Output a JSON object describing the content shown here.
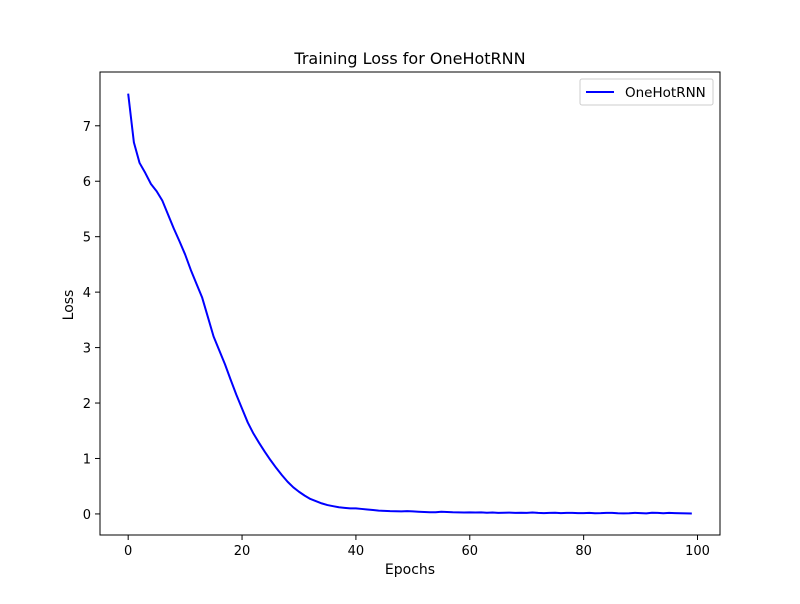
{
  "chart_data": {
    "type": "line",
    "title": "Training Loss for OneHotRNN",
    "xlabel": "Epochs",
    "ylabel": "Loss",
    "xlim": [
      -4.95,
      103.95
    ],
    "ylim": [
      -0.38,
      7.97
    ],
    "xticks": [
      0,
      20,
      40,
      60,
      80,
      100
    ],
    "yticks": [
      0,
      1,
      2,
      3,
      4,
      5,
      6,
      7
    ],
    "grid": false,
    "legend_position": "top-right",
    "series": [
      {
        "name": "OneHotRNN",
        "color": "#0000ff",
        "x": [
          0,
          1,
          2,
          3,
          4,
          5,
          6,
          7,
          8,
          9,
          10,
          11,
          12,
          13,
          14,
          15,
          16,
          17,
          18,
          19,
          20,
          21,
          22,
          23,
          24,
          25,
          26,
          27,
          28,
          29,
          30,
          31,
          32,
          33,
          34,
          35,
          36,
          37,
          38,
          39,
          40,
          41,
          42,
          43,
          44,
          45,
          46,
          47,
          48,
          49,
          50,
          51,
          52,
          53,
          54,
          55,
          56,
          57,
          58,
          59,
          60,
          61,
          62,
          63,
          64,
          65,
          66,
          67,
          68,
          69,
          70,
          71,
          72,
          73,
          74,
          75,
          76,
          77,
          78,
          79,
          80,
          81,
          82,
          83,
          84,
          85,
          86,
          87,
          88,
          89,
          90,
          91,
          92,
          93,
          94,
          95,
          96,
          97,
          98,
          99
        ],
        "y": [
          7.58,
          6.7,
          6.33,
          6.15,
          5.95,
          5.82,
          5.65,
          5.4,
          5.15,
          4.92,
          4.68,
          4.4,
          4.15,
          3.9,
          3.55,
          3.2,
          2.95,
          2.7,
          2.42,
          2.15,
          1.9,
          1.65,
          1.45,
          1.28,
          1.12,
          0.97,
          0.83,
          0.7,
          0.58,
          0.48,
          0.4,
          0.33,
          0.27,
          0.23,
          0.19,
          0.16,
          0.14,
          0.12,
          0.11,
          0.1,
          0.1,
          0.09,
          0.08,
          0.07,
          0.06,
          0.055,
          0.05,
          0.048,
          0.045,
          0.05,
          0.045,
          0.04,
          0.035,
          0.03,
          0.03,
          0.04,
          0.035,
          0.03,
          0.028,
          0.025,
          0.027,
          0.025,
          0.028,
          0.022,
          0.025,
          0.02,
          0.022,
          0.024,
          0.02,
          0.022,
          0.02,
          0.025,
          0.018,
          0.015,
          0.02,
          0.022,
          0.015,
          0.018,
          0.02,
          0.014,
          0.015,
          0.02,
          0.012,
          0.014,
          0.02,
          0.018,
          0.012,
          0.01,
          0.012,
          0.02,
          0.015,
          0.01,
          0.022,
          0.018,
          0.012,
          0.02,
          0.015,
          0.012,
          0.01,
          0.008
        ]
      }
    ]
  }
}
